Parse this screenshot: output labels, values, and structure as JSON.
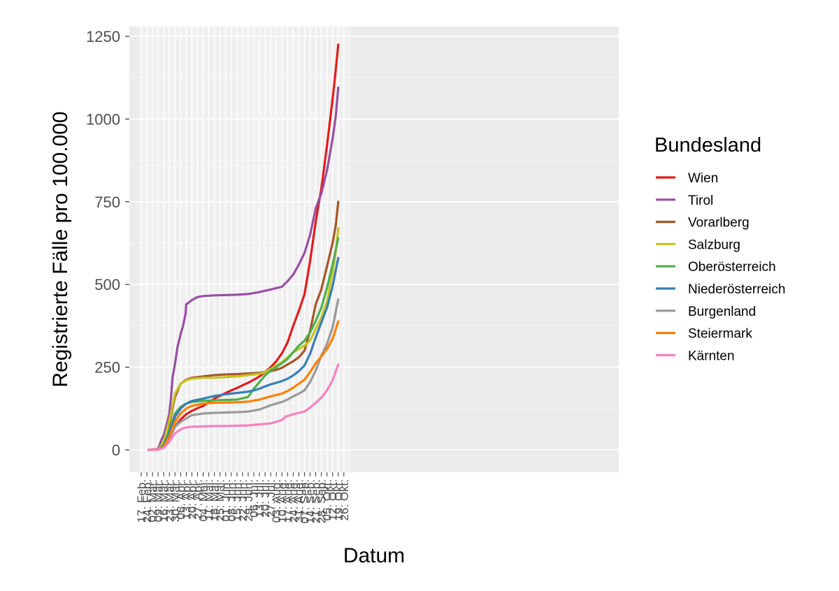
{
  "chart_data": {
    "type": "line",
    "title": "",
    "xlabel": "Datum",
    "ylabel": "Registrierte Fälle pro 100.000",
    "ylim": [
      -60,
      1250
    ],
    "y_ticks": [
      0,
      250,
      500,
      750,
      1000,
      1250
    ],
    "x_ticks": [
      "17. Feb.",
      "24. Feb.",
      "02. Mär.",
      "09. Mär.",
      "16. Mär.",
      "23. Mär.",
      "30. Mär.",
      "06. Apr.",
      "13. Apr.",
      "20. Apr.",
      "27. Apr.",
      "04. Mai.",
      "11. Mai.",
      "18. Mai.",
      "25. Mai.",
      "01. Jun.",
      "08. Jun.",
      "15. Jun.",
      "22. Jun.",
      "29. Jun.",
      "06. Jul.",
      "13. Jul.",
      "20. Jul.",
      "27. Jul.",
      "03. Aug.",
      "10. Aug.",
      "17. Aug.",
      "24. Aug.",
      "31. Aug.",
      "07. Sep.",
      "14. Sep.",
      "21. Sep.",
      "28. Sep.",
      "05. Okt.",
      "12. Okt.",
      "19. Okt.",
      "26. Okt."
    ],
    "grid": true,
    "legend_title": "Bundesland",
    "legend_position": "right",
    "series": [
      {
        "name": "Wien",
        "color": "#E41A1C",
        "points": [
          [
            "2020-02-26",
            0
          ],
          [
            "2020-03-09",
            1
          ],
          [
            "2020-03-16",
            6
          ],
          [
            "2020-03-23",
            35
          ],
          [
            "2020-03-30",
            70
          ],
          [
            "2020-04-06",
            92
          ],
          [
            "2020-04-13",
            108
          ],
          [
            "2020-04-20",
            118
          ],
          [
            "2020-04-27",
            126
          ],
          [
            "2020-05-04",
            133
          ],
          [
            "2020-05-11",
            143
          ],
          [
            "2020-05-18",
            155
          ],
          [
            "2020-05-25",
            163
          ],
          [
            "2020-06-01",
            172
          ],
          [
            "2020-06-08",
            180
          ],
          [
            "2020-06-15",
            187
          ],
          [
            "2020-06-22",
            195
          ],
          [
            "2020-06-29",
            203
          ],
          [
            "2020-07-06",
            212
          ],
          [
            "2020-07-13",
            222
          ],
          [
            "2020-07-20",
            235
          ],
          [
            "2020-07-27",
            250
          ],
          [
            "2020-08-03",
            268
          ],
          [
            "2020-08-10",
            292
          ],
          [
            "2020-08-17",
            325
          ],
          [
            "2020-08-24",
            375
          ],
          [
            "2020-08-31",
            420
          ],
          [
            "2020-09-07",
            470
          ],
          [
            "2020-09-14",
            570
          ],
          [
            "2020-09-21",
            690
          ],
          [
            "2020-09-28",
            790
          ],
          [
            "2020-10-05",
            920
          ],
          [
            "2020-10-12",
            1060
          ],
          [
            "2020-10-16",
            1150
          ],
          [
            "2020-10-19",
            1225
          ]
        ]
      },
      {
        "name": "Tirol",
        "color": "#984EA3",
        "points": [
          [
            "2020-02-26",
            0
          ],
          [
            "2020-03-09",
            3
          ],
          [
            "2020-03-13",
            30
          ],
          [
            "2020-03-16",
            45
          ],
          [
            "2020-03-20",
            80
          ],
          [
            "2020-03-23",
            110
          ],
          [
            "2020-03-25",
            160
          ],
          [
            "2020-03-27",
            220
          ],
          [
            "2020-03-30",
            260
          ],
          [
            "2020-04-02",
            310
          ],
          [
            "2020-04-06",
            350
          ],
          [
            "2020-04-09",
            375
          ],
          [
            "2020-04-12",
            410
          ],
          [
            "2020-04-13",
            440
          ],
          [
            "2020-04-16",
            445
          ],
          [
            "2020-04-20",
            453
          ],
          [
            "2020-04-27",
            462
          ],
          [
            "2020-05-04",
            465
          ],
          [
            "2020-05-18",
            467
          ],
          [
            "2020-06-01",
            468
          ],
          [
            "2020-06-15",
            469
          ],
          [
            "2020-06-29",
            471
          ],
          [
            "2020-07-13",
            477
          ],
          [
            "2020-07-27",
            485
          ],
          [
            "2020-08-10",
            493
          ],
          [
            "2020-08-17",
            510
          ],
          [
            "2020-08-24",
            530
          ],
          [
            "2020-08-31",
            560
          ],
          [
            "2020-09-07",
            595
          ],
          [
            "2020-09-14",
            650
          ],
          [
            "2020-09-21",
            730
          ],
          [
            "2020-09-28",
            775
          ],
          [
            "2020-10-05",
            845
          ],
          [
            "2020-10-12",
            940
          ],
          [
            "2020-10-16",
            1010
          ],
          [
            "2020-10-19",
            1095
          ]
        ]
      },
      {
        "name": "Vorarlberg",
        "color": "#A65628",
        "points": [
          [
            "2020-02-26",
            0
          ],
          [
            "2020-03-09",
            2
          ],
          [
            "2020-03-16",
            20
          ],
          [
            "2020-03-23",
            80
          ],
          [
            "2020-03-30",
            160
          ],
          [
            "2020-04-06",
            200
          ],
          [
            "2020-04-13",
            212
          ],
          [
            "2020-04-20",
            218
          ],
          [
            "2020-05-04",
            222
          ],
          [
            "2020-05-18",
            226
          ],
          [
            "2020-06-01",
            228
          ],
          [
            "2020-06-15",
            229
          ],
          [
            "2020-06-29",
            231
          ],
          [
            "2020-07-13",
            233
          ],
          [
            "2020-07-27",
            238
          ],
          [
            "2020-08-03",
            242
          ],
          [
            "2020-08-10",
            248
          ],
          [
            "2020-08-17",
            258
          ],
          [
            "2020-08-24",
            268
          ],
          [
            "2020-08-31",
            280
          ],
          [
            "2020-09-07",
            300
          ],
          [
            "2020-09-14",
            360
          ],
          [
            "2020-09-21",
            440
          ],
          [
            "2020-09-28",
            485
          ],
          [
            "2020-10-05",
            555
          ],
          [
            "2020-10-12",
            625
          ],
          [
            "2020-10-16",
            680
          ],
          [
            "2020-10-19",
            750
          ]
        ]
      },
      {
        "name": "Salzburg",
        "color": "#C5C523",
        "points": [
          [
            "2020-02-26",
            0
          ],
          [
            "2020-03-09",
            2
          ],
          [
            "2020-03-16",
            25
          ],
          [
            "2020-03-23",
            90
          ],
          [
            "2020-03-30",
            170
          ],
          [
            "2020-04-06",
            200
          ],
          [
            "2020-04-13",
            210
          ],
          [
            "2020-04-20",
            215
          ],
          [
            "2020-05-04",
            218
          ],
          [
            "2020-05-18",
            218
          ],
          [
            "2020-06-01",
            220
          ],
          [
            "2020-06-15",
            222
          ],
          [
            "2020-06-29",
            226
          ],
          [
            "2020-07-13",
            230
          ],
          [
            "2020-07-20",
            235
          ],
          [
            "2020-07-27",
            245
          ],
          [
            "2020-08-03",
            255
          ],
          [
            "2020-08-10",
            265
          ],
          [
            "2020-08-17",
            280
          ],
          [
            "2020-08-24",
            295
          ],
          [
            "2020-08-31",
            305
          ],
          [
            "2020-09-07",
            315
          ],
          [
            "2020-09-14",
            330
          ],
          [
            "2020-09-21",
            365
          ],
          [
            "2020-09-28",
            400
          ],
          [
            "2020-10-05",
            450
          ],
          [
            "2020-10-12",
            535
          ],
          [
            "2020-10-16",
            600
          ],
          [
            "2020-10-19",
            670
          ]
        ]
      },
      {
        "name": "Oberösterreich",
        "color": "#4DAF4A",
        "points": [
          [
            "2020-02-26",
            0
          ],
          [
            "2020-03-09",
            2
          ],
          [
            "2020-03-16",
            15
          ],
          [
            "2020-03-23",
            60
          ],
          [
            "2020-03-30",
            110
          ],
          [
            "2020-04-06",
            130
          ],
          [
            "2020-04-13",
            140
          ],
          [
            "2020-04-20",
            145
          ],
          [
            "2020-05-04",
            148
          ],
          [
            "2020-05-18",
            150
          ],
          [
            "2020-06-01",
            151
          ],
          [
            "2020-06-15",
            152
          ],
          [
            "2020-06-29",
            160
          ],
          [
            "2020-07-06",
            185
          ],
          [
            "2020-07-13",
            205
          ],
          [
            "2020-07-20",
            225
          ],
          [
            "2020-07-27",
            240
          ],
          [
            "2020-08-03",
            250
          ],
          [
            "2020-08-10",
            262
          ],
          [
            "2020-08-17",
            275
          ],
          [
            "2020-08-24",
            295
          ],
          [
            "2020-08-31",
            315
          ],
          [
            "2020-09-07",
            330
          ],
          [
            "2020-09-14",
            355
          ],
          [
            "2020-09-21",
            390
          ],
          [
            "2020-09-28",
            430
          ],
          [
            "2020-10-05",
            490
          ],
          [
            "2020-10-12",
            560
          ],
          [
            "2020-10-19",
            640
          ]
        ]
      },
      {
        "name": "Niederösterreich",
        "color": "#377EB8",
        "points": [
          [
            "2020-02-26",
            0
          ],
          [
            "2020-03-09",
            2
          ],
          [
            "2020-03-16",
            12
          ],
          [
            "2020-03-23",
            50
          ],
          [
            "2020-03-30",
            100
          ],
          [
            "2020-04-06",
            125
          ],
          [
            "2020-04-13",
            140
          ],
          [
            "2020-04-20",
            148
          ],
          [
            "2020-05-04",
            155
          ],
          [
            "2020-05-18",
            163
          ],
          [
            "2020-06-01",
            168
          ],
          [
            "2020-06-15",
            172
          ],
          [
            "2020-06-29",
            176
          ],
          [
            "2020-07-06",
            180
          ],
          [
            "2020-07-13",
            185
          ],
          [
            "2020-07-20",
            192
          ],
          [
            "2020-07-27",
            198
          ],
          [
            "2020-08-03",
            203
          ],
          [
            "2020-08-10",
            208
          ],
          [
            "2020-08-17",
            215
          ],
          [
            "2020-08-24",
            225
          ],
          [
            "2020-08-31",
            238
          ],
          [
            "2020-09-07",
            255
          ],
          [
            "2020-09-14",
            290
          ],
          [
            "2020-09-21",
            340
          ],
          [
            "2020-09-28",
            385
          ],
          [
            "2020-10-05",
            430
          ],
          [
            "2020-10-12",
            495
          ],
          [
            "2020-10-19",
            580
          ]
        ]
      },
      {
        "name": "Burgenland",
        "color": "#999999",
        "points": [
          [
            "2020-02-26",
            0
          ],
          [
            "2020-03-09",
            1
          ],
          [
            "2020-03-16",
            8
          ],
          [
            "2020-03-23",
            35
          ],
          [
            "2020-03-30",
            70
          ],
          [
            "2020-04-06",
            85
          ],
          [
            "2020-04-13",
            95
          ],
          [
            "2020-04-20",
            105
          ],
          [
            "2020-05-04",
            110
          ],
          [
            "2020-05-18",
            112
          ],
          [
            "2020-06-01",
            113
          ],
          [
            "2020-06-15",
            114
          ],
          [
            "2020-06-29",
            116
          ],
          [
            "2020-07-13",
            122
          ],
          [
            "2020-07-27",
            135
          ],
          [
            "2020-08-10",
            145
          ],
          [
            "2020-08-17",
            152
          ],
          [
            "2020-08-24",
            162
          ],
          [
            "2020-08-31",
            170
          ],
          [
            "2020-09-07",
            180
          ],
          [
            "2020-09-14",
            205
          ],
          [
            "2020-09-21",
            240
          ],
          [
            "2020-09-28",
            285
          ],
          [
            "2020-10-05",
            320
          ],
          [
            "2020-10-12",
            370
          ],
          [
            "2020-10-19",
            455
          ]
        ]
      },
      {
        "name": "Steiermark",
        "color": "#FF7F00",
        "points": [
          [
            "2020-02-26",
            0
          ],
          [
            "2020-03-09",
            2
          ],
          [
            "2020-03-16",
            10
          ],
          [
            "2020-03-23",
            40
          ],
          [
            "2020-03-30",
            85
          ],
          [
            "2020-04-06",
            110
          ],
          [
            "2020-04-13",
            125
          ],
          [
            "2020-04-20",
            133
          ],
          [
            "2020-05-04",
            140
          ],
          [
            "2020-05-18",
            142
          ],
          [
            "2020-06-01",
            143
          ],
          [
            "2020-06-15",
            144
          ],
          [
            "2020-06-29",
            146
          ],
          [
            "2020-07-13",
            152
          ],
          [
            "2020-07-27",
            162
          ],
          [
            "2020-08-10",
            170
          ],
          [
            "2020-08-17",
            178
          ],
          [
            "2020-08-24",
            188
          ],
          [
            "2020-08-31",
            200
          ],
          [
            "2020-09-07",
            212
          ],
          [
            "2020-09-14",
            235
          ],
          [
            "2020-09-21",
            262
          ],
          [
            "2020-09-28",
            282
          ],
          [
            "2020-10-05",
            305
          ],
          [
            "2020-10-12",
            335
          ],
          [
            "2020-10-19",
            388
          ]
        ]
      },
      {
        "name": "Kärnten",
        "color": "#F781BF",
        "points": [
          [
            "2020-02-26",
            0
          ],
          [
            "2020-03-09",
            1
          ],
          [
            "2020-03-16",
            6
          ],
          [
            "2020-03-23",
            25
          ],
          [
            "2020-03-30",
            50
          ],
          [
            "2020-04-06",
            62
          ],
          [
            "2020-04-13",
            68
          ],
          [
            "2020-04-20",
            70
          ],
          [
            "2020-05-04",
            71
          ],
          [
            "2020-05-18",
            72
          ],
          [
            "2020-06-01",
            72
          ],
          [
            "2020-06-15",
            73
          ],
          [
            "2020-06-29",
            74
          ],
          [
            "2020-07-13",
            77
          ],
          [
            "2020-07-27",
            80
          ],
          [
            "2020-08-10",
            90
          ],
          [
            "2020-08-14",
            100
          ],
          [
            "2020-08-17",
            102
          ],
          [
            "2020-08-24",
            108
          ],
          [
            "2020-08-31",
            112
          ],
          [
            "2020-09-07",
            116
          ],
          [
            "2020-09-14",
            128
          ],
          [
            "2020-09-21",
            142
          ],
          [
            "2020-09-28",
            158
          ],
          [
            "2020-10-05",
            180
          ],
          [
            "2020-10-12",
            210
          ],
          [
            "2020-10-19",
            258
          ]
        ]
      }
    ]
  }
}
